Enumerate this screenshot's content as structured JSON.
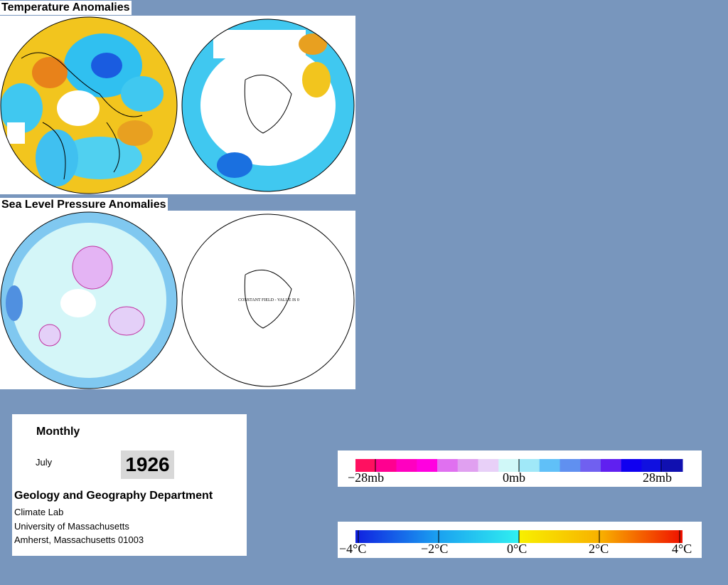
{
  "temperature_panel": {
    "title": "Temperature Anomalies"
  },
  "pressure_panel": {
    "title": "Sea Level Pressure Anomalies",
    "note": "CONSTANT FIELD - VALUE IS 0"
  },
  "info": {
    "frequency": "Monthly",
    "month": "July",
    "year": "1926",
    "department": "Geology and Geography Department",
    "lines": [
      "Climate Lab",
      "University of Massachusetts",
      "Amherst, Massachusetts 01003"
    ]
  },
  "pressure_scale": {
    "labels": [
      "−28mb",
      "0mb",
      "28mb"
    ]
  },
  "temperature_scale": {
    "labels": [
      "−4°C",
      "−2°C",
      "0°C",
      "2°C",
      "4°C"
    ]
  }
}
